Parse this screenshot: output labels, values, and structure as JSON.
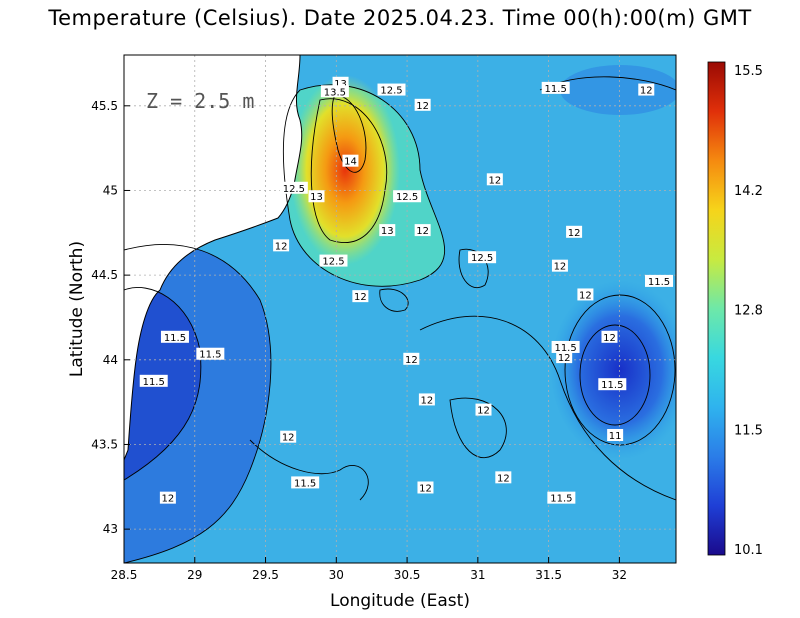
{
  "title": "Temperature (Celsius). Date 2025.04.23. Time 00(h):00(m) GMT",
  "depth_label": "Z = 2.5 m",
  "x_axis": {
    "label": "Longitude (East)",
    "range": [
      28.5,
      32.4
    ],
    "ticks": [
      "28.5",
      "29",
      "29.5",
      "30",
      "30.5",
      "31",
      "31.5",
      "32"
    ]
  },
  "y_axis": {
    "label": "Latitude (North)",
    "range": [
      42.8,
      45.8
    ],
    "ticks": [
      "43",
      "43.5",
      "44",
      "44.5",
      "45",
      "45.5"
    ]
  },
  "colorbar": {
    "ticks": [
      "10.1",
      "11.5",
      "12.8",
      "14.2",
      "15.5"
    ],
    "colors": [
      "#1a0a8c",
      "#1f3fd6",
      "#2b7de8",
      "#2fb3ee",
      "#38d8e0",
      "#6ee8a8",
      "#c8ea40",
      "#f6d41a",
      "#f58a10",
      "#e0300a",
      "#9a0a04"
    ]
  },
  "contour_labels": [
    {
      "text": "13",
      "lon": 30.03,
      "lat": 45.63
    },
    {
      "text": "13.5",
      "lon": 29.99,
      "lat": 45.58
    },
    {
      "text": "12.5",
      "lon": 30.39,
      "lat": 45.59
    },
    {
      "text": "12",
      "lon": 30.61,
      "lat": 45.5
    },
    {
      "text": "11.5",
      "lon": 31.55,
      "lat": 45.6
    },
    {
      "text": "12",
      "lon": 32.19,
      "lat": 45.59
    },
    {
      "text": "14",
      "lon": 30.1,
      "lat": 45.17
    },
    {
      "text": "12.5",
      "lon": 29.7,
      "lat": 45.01
    },
    {
      "text": "13",
      "lon": 29.86,
      "lat": 44.96
    },
    {
      "text": "12.5",
      "lon": 30.5,
      "lat": 44.96
    },
    {
      "text": "12",
      "lon": 31.12,
      "lat": 45.06
    },
    {
      "text": "13",
      "lon": 30.36,
      "lat": 44.76
    },
    {
      "text": "12",
      "lon": 30.61,
      "lat": 44.76
    },
    {
      "text": "12",
      "lon": 31.68,
      "lat": 44.75
    },
    {
      "text": "12",
      "lon": 29.61,
      "lat": 44.67
    },
    {
      "text": "12.5",
      "lon": 29.98,
      "lat": 44.58
    },
    {
      "text": "12.5",
      "lon": 31.03,
      "lat": 44.6
    },
    {
      "text": "12",
      "lon": 31.58,
      "lat": 44.55
    },
    {
      "text": "11.5",
      "lon": 32.28,
      "lat": 44.46
    },
    {
      "text": "12",
      "lon": 30.17,
      "lat": 44.37
    },
    {
      "text": "12",
      "lon": 31.76,
      "lat": 44.38
    },
    {
      "text": "11.5",
      "lon": 28.86,
      "lat": 44.13
    },
    {
      "text": "12",
      "lon": 31.93,
      "lat": 44.13
    },
    {
      "text": "11.5",
      "lon": 29.11,
      "lat": 44.03
    },
    {
      "text": "11.5",
      "lon": 31.62,
      "lat": 44.07
    },
    {
      "text": "12",
      "lon": 31.61,
      "lat": 44.01
    },
    {
      "text": "12",
      "lon": 30.53,
      "lat": 44.0
    },
    {
      "text": "11.5",
      "lon": 28.71,
      "lat": 43.87
    },
    {
      "text": "11.5",
      "lon": 31.95,
      "lat": 43.85
    },
    {
      "text": "12",
      "lon": 30.64,
      "lat": 43.76
    },
    {
      "text": "12",
      "lon": 31.04,
      "lat": 43.7
    },
    {
      "text": "12",
      "lon": 29.66,
      "lat": 43.54
    },
    {
      "text": "11",
      "lon": 31.97,
      "lat": 43.55
    },
    {
      "text": "11.5",
      "lon": 29.78,
      "lat": 43.27
    },
    {
      "text": "12",
      "lon": 31.18,
      "lat": 43.3
    },
    {
      "text": "12",
      "lon": 30.63,
      "lat": 43.24
    },
    {
      "text": "11.5",
      "lon": 31.59,
      "lat": 43.18
    },
    {
      "text": "12",
      "lon": 28.81,
      "lat": 43.18
    }
  ]
}
